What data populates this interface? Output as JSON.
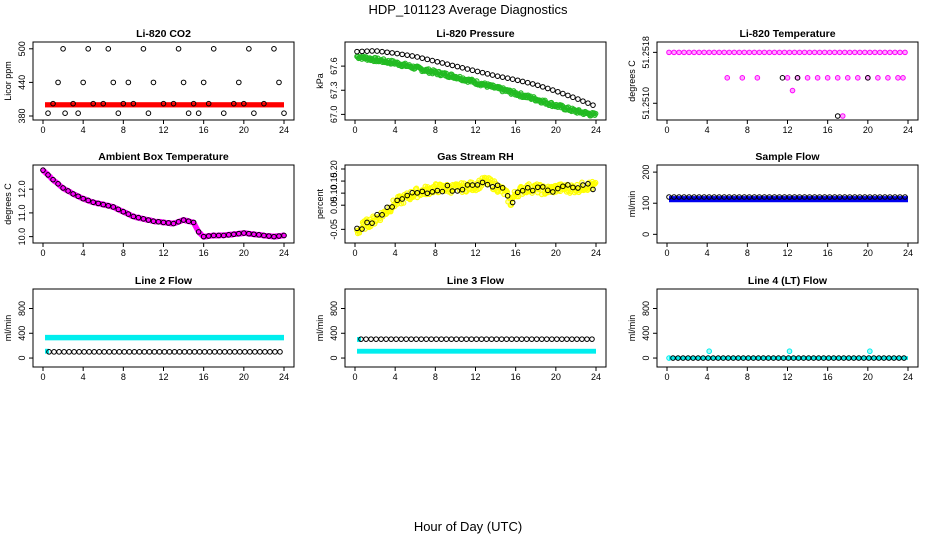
{
  "figure": {
    "title": "HDP_101123  Average Diagnostics",
    "xlabel": "Hour of Day (UTC)"
  },
  "colors": {
    "red": "#ff0000",
    "green": "#22bb22",
    "yellow": "#ffff00",
    "magenta": "#ff00ff",
    "blue": "#0000ee",
    "cyan": "#00eeee",
    "black": "#000000"
  },
  "chart_data": [
    {
      "id": "co2",
      "type": "scatter",
      "title": "Li-820 CO2",
      "ylabel": "Licor ppm",
      "xlim": [
        0,
        24
      ],
      "ylim": [
        380,
        505
      ],
      "xticks": [
        "0",
        "4",
        "8",
        "12",
        "16",
        "20",
        "24"
      ],
      "yticks": [
        "380",
        "440",
        "500"
      ],
      "series": [
        {
          "name": "all",
          "color": "red",
          "mode": "band",
          "x0": 0.2,
          "x1": 24,
          "y": 400,
          "h": 4
        },
        {
          "name": "average",
          "color": "black",
          "mode": "points",
          "x": [
            0.5,
            1,
            1.5,
            2,
            2.2,
            3,
            3.5,
            4,
            4.5,
            5,
            6,
            6.5,
            7,
            7.5,
            8,
            8.5,
            9,
            10,
            10.5,
            11,
            12,
            13,
            13.5,
            14,
            14.5,
            15,
            15.5,
            16,
            16.5,
            17,
            18,
            19,
            19.5,
            20,
            20.5,
            21,
            22,
            23,
            23.5,
            24
          ],
          "y": [
            385,
            402,
            440,
            500,
            385,
            402,
            385,
            440,
            500,
            402,
            402,
            500,
            440,
            385,
            402,
            440,
            402,
            500,
            385,
            440,
            402,
            402,
            500,
            440,
            385,
            402,
            385,
            440,
            402,
            500,
            385,
            402,
            440,
            402,
            500,
            385,
            402,
            500,
            440,
            385
          ]
        }
      ]
    },
    {
      "id": "pressure",
      "type": "scatter",
      "title": "Li-820 Pressure",
      "ylabel": "kPa",
      "xlim": [
        0,
        24
      ],
      "ylim": [
        66.98,
        67.85
      ],
      "xticks": [
        "0",
        "4",
        "8",
        "12",
        "16",
        "20",
        "24"
      ],
      "yticks": [
        "67.0",
        "67.3",
        "67.6"
      ],
      "series": [
        {
          "name": "all",
          "color": "green",
          "mode": "curve",
          "spread": 0.05,
          "x": [
            0.2,
            2,
            4,
            6,
            8,
            10,
            12,
            14,
            16,
            18,
            20,
            22,
            24
          ],
          "y": [
            67.72,
            67.68,
            67.64,
            67.58,
            67.52,
            67.47,
            67.4,
            67.33,
            67.26,
            67.19,
            67.11,
            67.04,
            66.99
          ]
        },
        {
          "name": "average",
          "color": "black",
          "mode": "curve-points",
          "step": 0.5,
          "x": [
            0.2,
            2,
            4,
            6,
            8,
            10,
            12,
            14,
            16,
            18,
            20,
            22,
            24
          ],
          "y": [
            67.78,
            67.79,
            67.76,
            67.72,
            67.66,
            67.6,
            67.54,
            67.48,
            67.43,
            67.37,
            67.29,
            67.2,
            67.1
          ]
        }
      ]
    },
    {
      "id": "li820temp",
      "type": "scatter",
      "title": "Li-820 Temperature",
      "ylabel": "degrees C",
      "xlim": [
        0,
        24
      ],
      "ylim": [
        51.2508,
        51.2519
      ],
      "xticks": [
        "0",
        "4",
        "8",
        "12",
        "16",
        "20",
        "24"
      ],
      "yticks": [
        "51.2510",
        "51.2518"
      ],
      "series": [
        {
          "name": "all",
          "color": "magenta",
          "mode": "points",
          "x": [
            6,
            7.5,
            9,
            12,
            12.5,
            13,
            14,
            15,
            16,
            17,
            17.5,
            18,
            19,
            20,
            21,
            22,
            23,
            23.5
          ],
          "y": [
            51.2514,
            51.2514,
            51.2514,
            51.2514,
            51.2512,
            51.2514,
            51.2514,
            51.2514,
            51.2514,
            51.2514,
            51.2508,
            51.2514,
            51.2514,
            51.2514,
            51.2514,
            51.2514,
            51.2514,
            51.2514
          ]
        },
        {
          "name": "all-top",
          "color": "magenta",
          "mode": "row",
          "x0": 0.2,
          "x1": 24,
          "y": 51.2518
        },
        {
          "name": "average",
          "color": "black",
          "mode": "points",
          "x": [
            11.5,
            13,
            17,
            20
          ],
          "y": [
            51.2514,
            51.2514,
            51.2508,
            51.2514
          ]
        }
      ]
    },
    {
      "id": "boxtemp",
      "type": "scatter",
      "title": "Ambient Box Temperature",
      "ylabel": "degrees C",
      "xlim": [
        0,
        24
      ],
      "ylim": [
        9.9,
        12.85
      ],
      "xticks": [
        "0",
        "4",
        "8",
        "12",
        "16",
        "20",
        "24"
      ],
      "yticks": [
        "10.0",
        "11.0",
        "12.0"
      ],
      "series": [
        {
          "name": "all",
          "color": "magenta",
          "mode": "curve",
          "spread": 0.03,
          "x": [
            0,
            1,
            2,
            3,
            4,
            5,
            6,
            7,
            8,
            9,
            10,
            11,
            12,
            13,
            14,
            15,
            15.5,
            16,
            17,
            18,
            19,
            20,
            21,
            22,
            23,
            24
          ],
          "y": [
            12.8,
            12.4,
            12.05,
            11.8,
            11.6,
            11.45,
            11.35,
            11.25,
            11.05,
            10.85,
            10.75,
            10.65,
            10.6,
            10.55,
            10.7,
            10.6,
            10.2,
            10.0,
            10.05,
            10.05,
            10.1,
            10.15,
            10.1,
            10.05,
            10.0,
            10.05
          ]
        },
        {
          "name": "average",
          "color": "black",
          "mode": "curve-points",
          "step": 0.5,
          "x": [
            0,
            1,
            2,
            3,
            4,
            5,
            6,
            7,
            8,
            9,
            10,
            11,
            12,
            13,
            14,
            15,
            15.5,
            16,
            17,
            18,
            19,
            20,
            21,
            22,
            23,
            24
          ],
          "y": [
            12.8,
            12.4,
            12.05,
            11.8,
            11.6,
            11.45,
            11.35,
            11.25,
            11.05,
            10.85,
            10.75,
            10.65,
            10.6,
            10.55,
            10.7,
            10.6,
            10.2,
            10.0,
            10.05,
            10.05,
            10.1,
            10.15,
            10.1,
            10.05,
            10.0,
            10.05
          ]
        }
      ]
    },
    {
      "id": "rh",
      "type": "scatter",
      "title": "Gas Stream RH",
      "ylabel": "percent",
      "xlim": [
        0,
        24
      ],
      "ylim": [
        -0.09,
        0.2
      ],
      "xticks": [
        "0",
        "4",
        "8",
        "12",
        "16",
        "20",
        "24"
      ],
      "yticks": [
        "-0.05",
        "0.05",
        "0.10",
        "0.15",
        "0.20"
      ],
      "series": [
        {
          "name": "all",
          "color": "yellow",
          "mode": "curve",
          "spread": 0.04,
          "x": [
            0.2,
            1,
            2,
            3,
            4,
            5,
            6,
            7,
            8,
            10,
            12,
            13,
            14,
            15,
            15.5,
            16,
            17,
            18,
            19,
            20,
            21,
            22,
            23,
            24
          ],
          "y": [
            -0.06,
            -0.03,
            -0.01,
            0.02,
            0.06,
            0.08,
            0.1,
            0.11,
            0.12,
            0.12,
            0.13,
            0.15,
            0.13,
            0.1,
            0.06,
            0.1,
            0.12,
            0.12,
            0.11,
            0.12,
            0.12,
            0.12,
            0.13,
            0.13
          ]
        },
        {
          "name": "average",
          "color": "black",
          "mode": "curve-points",
          "step": 0.5,
          "spread": 0.03,
          "x": [
            0.2,
            1,
            2,
            3,
            4,
            5,
            6,
            7,
            8,
            10,
            12,
            13,
            14,
            15,
            15.5,
            16,
            17,
            18,
            19,
            20,
            21,
            22,
            23,
            24
          ],
          "y": [
            -0.06,
            -0.03,
            -0.01,
            0.02,
            0.06,
            0.08,
            0.1,
            0.11,
            0.12,
            0.12,
            0.13,
            0.15,
            0.13,
            0.1,
            0.06,
            0.1,
            0.12,
            0.12,
            0.11,
            0.12,
            0.12,
            0.12,
            0.13,
            0.13
          ]
        }
      ]
    },
    {
      "id": "sampleflow",
      "type": "scatter",
      "title": "Sample Flow",
      "ylabel": "ml/min",
      "xlim": [
        0,
        24
      ],
      "ylim": [
        -15,
        210
      ],
      "xticks": [
        "0",
        "4",
        "8",
        "12",
        "16",
        "20",
        "24"
      ],
      "yticks": [
        "0",
        "100",
        "200"
      ],
      "series": [
        {
          "name": "all",
          "color": "blue",
          "mode": "band",
          "x0": 0.2,
          "x1": 24,
          "y": 113,
          "h": 10
        },
        {
          "name": "average",
          "color": "black",
          "mode": "row",
          "x0": 0.2,
          "x1": 24,
          "y": 120
        }
      ]
    },
    {
      "id": "line2",
      "type": "scatter",
      "title": "Line 2 Flow",
      "ylabel": "ml/min",
      "xlim": [
        0,
        24
      ],
      "ylim": [
        -80,
        1050
      ],
      "xticks": [
        "0",
        "4",
        "8",
        "12",
        "16",
        "20",
        "24"
      ],
      "yticks": [
        "0",
        "400",
        "800"
      ],
      "series": [
        {
          "name": "all-high",
          "color": "cyan",
          "mode": "band",
          "x0": 0.2,
          "x1": 24,
          "y": 330,
          "h": 40
        },
        {
          "name": "all-low",
          "color": "cyan",
          "mode": "band",
          "x0": 0.2,
          "x1": 0.6,
          "y": 110,
          "h": 30
        },
        {
          "name": "average",
          "color": "black",
          "mode": "row",
          "x0": 0.6,
          "x1": 24,
          "y": 100
        }
      ]
    },
    {
      "id": "line3",
      "type": "scatter",
      "title": "Line 3 Flow",
      "ylabel": "ml/min",
      "xlim": [
        0,
        24
      ],
      "ylim": [
        -80,
        1050
      ],
      "xticks": [
        "0",
        "4",
        "8",
        "12",
        "16",
        "20",
        "24"
      ],
      "yticks": [
        "0",
        "400",
        "800"
      ],
      "series": [
        {
          "name": "all-low",
          "color": "cyan",
          "mode": "band",
          "x0": 0.2,
          "x1": 24,
          "y": 110,
          "h": 30
        },
        {
          "name": "all-high",
          "color": "cyan",
          "mode": "band",
          "x0": 0.2,
          "x1": 0.6,
          "y": 300,
          "h": 30
        },
        {
          "name": "average",
          "color": "black",
          "mode": "row",
          "x0": 0.6,
          "x1": 24,
          "y": 305
        }
      ]
    },
    {
      "id": "line4",
      "type": "scatter",
      "title": "Line 4 (LT) Flow",
      "ylabel": "ml/min",
      "xlim": [
        0,
        24
      ],
      "ylim": [
        -80,
        1050
      ],
      "xticks": [
        "0",
        "4",
        "8",
        "12",
        "16",
        "20",
        "24"
      ],
      "yticks": [
        "0",
        "400",
        "800"
      ],
      "series": [
        {
          "name": "all",
          "color": "cyan",
          "mode": "points",
          "x": [
            0.2,
            4.2,
            12.2,
            20.2
          ],
          "y": [
            0,
            110,
            110,
            110
          ]
        },
        {
          "name": "all-base",
          "color": "cyan",
          "mode": "band",
          "x0": 0.2,
          "x1": 24,
          "y": 0,
          "h": 10
        },
        {
          "name": "average",
          "color": "black",
          "mode": "row",
          "x0": 0.6,
          "x1": 24,
          "y": 0
        }
      ]
    }
  ]
}
